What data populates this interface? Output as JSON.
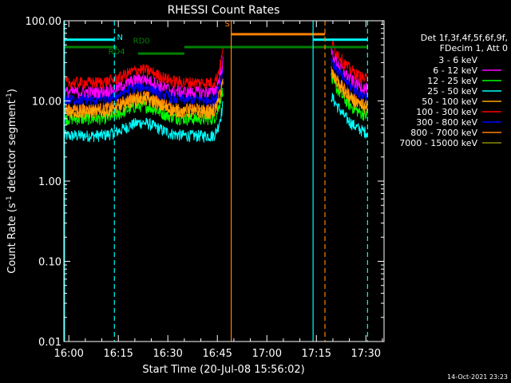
{
  "chart_data": {
    "type": "line",
    "title": "RHESSI Count Rates",
    "xlabel": "Start Time (20-Jul-08 15:56:02)",
    "ylabel_main": "Count Rate (s",
    "ylabel_sup": "-1",
    "ylabel_tail": " detector segment",
    "y_scale": "log",
    "ylim": [
      0.01,
      100
    ],
    "xlim_minutes": [
      -1.5,
      33.5
    ],
    "x_ticks": [
      {
        "label": "16:00",
        "t": 0
      },
      {
        "label": "16:15",
        "t": 15
      },
      {
        "label": "16:30",
        "t": 30
      },
      {
        "label": "16:45",
        "t": 45
      },
      {
        "label": "17:00",
        "t": 60
      },
      {
        "label": "17:15",
        "t": 75
      },
      {
        "label": "17:30",
        "t": 90
      }
    ],
    "y_ticks": [
      {
        "label": "0.01",
        "v": 0.01
      },
      {
        "label": "0.10",
        "v": 0.1
      },
      {
        "label": "1.00",
        "v": 1
      },
      {
        "label": "10.00",
        "v": 10
      },
      {
        "label": "100.00",
        "v": 100
      }
    ],
    "legend_header": [
      "Det 1f,3f,4f,5f,6f,9f,",
      "FDecim 1, Att 0"
    ],
    "series": [
      {
        "name": "3 - 6 keV",
        "color": "#000000",
        "base": 8.5
      },
      {
        "name": "6 - 12 keV",
        "color": "#ff00ff",
        "base": 13.0
      },
      {
        "name": "12 - 25 keV",
        "color": "#00ff00",
        "base": 6.0
      },
      {
        "name": "25 - 50 keV",
        "color": "#00ffff",
        "base": 3.7
      },
      {
        "name": "50 - 100 keV",
        "color": "#ffa500",
        "base": 7.2
      },
      {
        "name": "100 - 300 keV",
        "color": "#ff0000",
        "base": 17.0
      },
      {
        "name": "300 - 800 keV",
        "color": "#0000ff",
        "base": 10.5
      },
      {
        "name": "800 - 7000 keV",
        "color": "#ff8000",
        "base": 8.0
      },
      {
        "name": "7000 - 15000 keV",
        "color": "#8b8b00",
        "base": 8.0
      }
    ],
    "data_gap_minutes": [
      46.8,
      79.5
    ],
    "annotations": [
      {
        "text": "N",
        "color": "#00ffff",
        "t": 15.5,
        "y": 58
      },
      {
        "text": "RD4",
        "color": "#008000",
        "t": 14.5,
        "y": 38
      },
      {
        "text": "RD0",
        "color": "#008000",
        "t": 22.0,
        "y": 52
      },
      {
        "text": "S",
        "color": "#ff8000",
        "t": 48.0,
        "y": 85
      }
    ],
    "vertical_lines": [
      {
        "t": -1.3,
        "color": "#00ffff",
        "style": "solid"
      },
      {
        "t": 13.8,
        "color": "#00ffff",
        "style": "dashed"
      },
      {
        "t": 49.2,
        "color": "#ff8000",
        "style": "solid"
      },
      {
        "t": 74.0,
        "color": "#00ffff",
        "style": "solid"
      },
      {
        "t": 77.6,
        "color": "#ff8000",
        "style": "dashed"
      },
      {
        "t": 90.5,
        "color": "#00ffff",
        "style": "dashed"
      }
    ],
    "flag_bars": [
      {
        "label": "",
        "color": "#00ffff",
        "t0": -1.3,
        "t1": 13.8,
        "y": 58
      },
      {
        "label": "",
        "color": "#00ffff",
        "t0": 74.0,
        "t1": 90.5,
        "y": 58
      },
      {
        "label": "",
        "color": "#008000",
        "t0": -1.3,
        "t1": 14.5,
        "y": 47
      },
      {
        "label": "",
        "color": "#008000",
        "t0": 21.0,
        "t1": 35.0,
        "y": 39
      },
      {
        "label": "",
        "color": "#008000",
        "t0": 35.0,
        "t1": 90.5,
        "y": 47
      },
      {
        "label": "",
        "color": "#ff8000",
        "t0": 49.2,
        "t1": 77.6,
        "y": 68
      }
    ],
    "timestamp": "14-Oct-2021 23:23"
  }
}
